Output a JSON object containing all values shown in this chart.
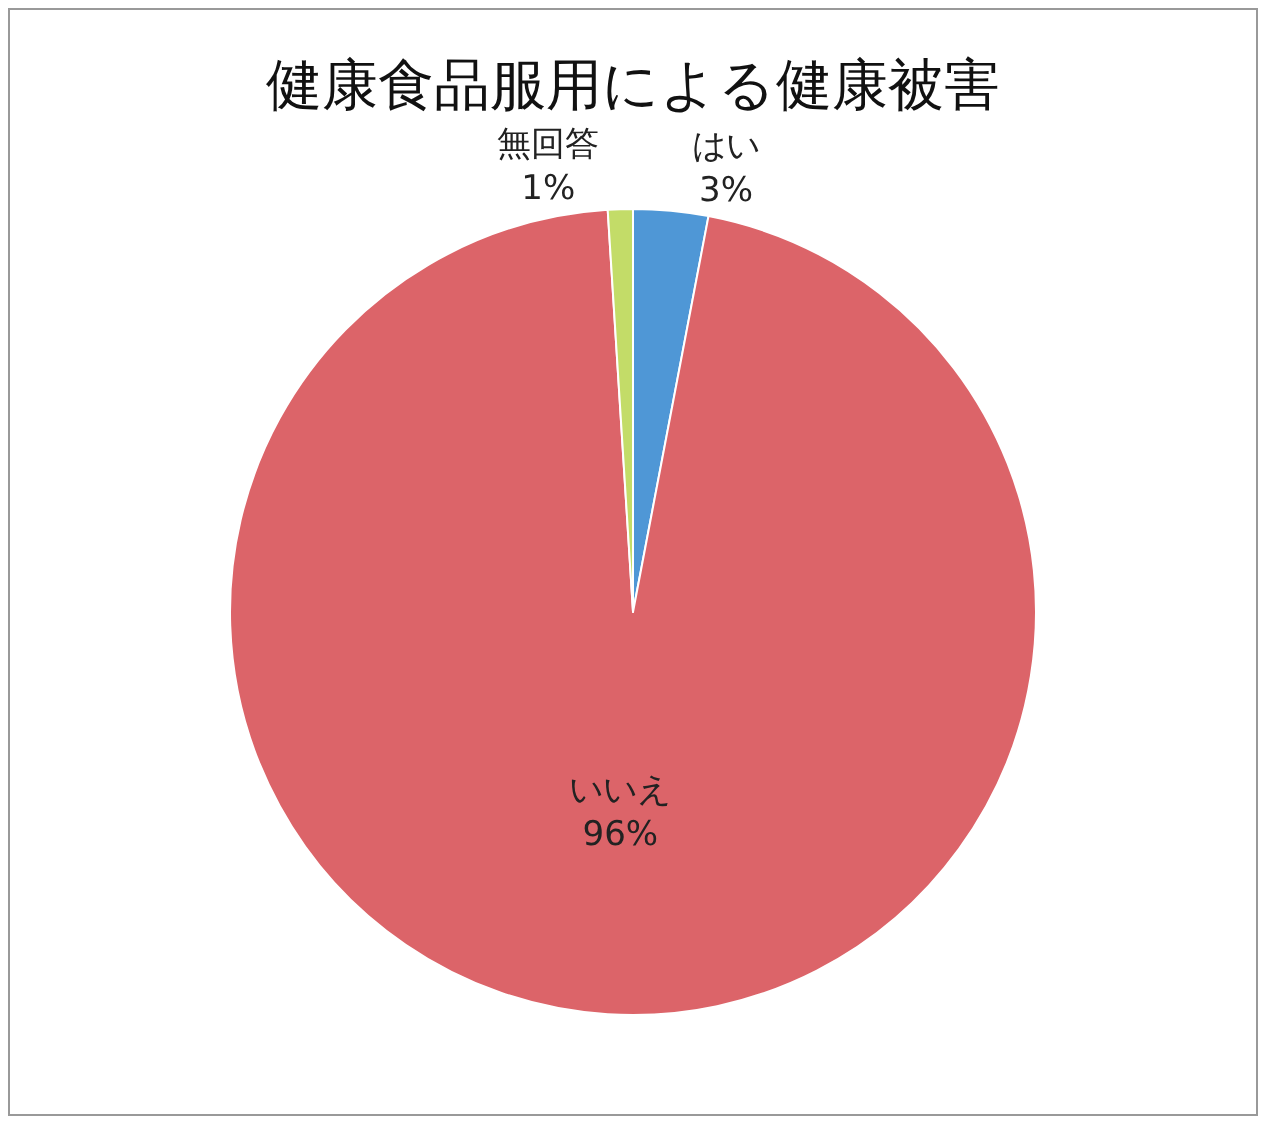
{
  "chart_data": {
    "type": "pie",
    "title": "健康食品服用による健康被害",
    "categories": [
      "はい",
      "いいえ",
      "無回答"
    ],
    "values": [
      3,
      96,
      1
    ],
    "value_labels": [
      "3%",
      "96%",
      "1%"
    ],
    "colors": [
      "#4f97d6",
      "#dc6469",
      "#c3dc68"
    ],
    "legend": false
  }
}
